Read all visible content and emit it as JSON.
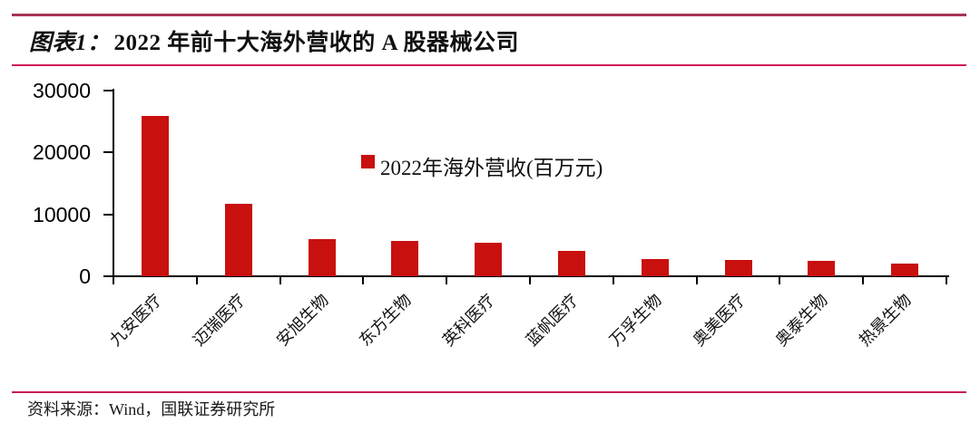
{
  "header": {
    "title_prefix": "图表1：",
    "title_text": "2022 年前十大海外营收的 A 股器械公司"
  },
  "chart_data": {
    "type": "bar",
    "title": "图表1：2022 年前十大海外营收的 A 股器械公司",
    "legend": "2022年海外营收(百万元)",
    "legend_position": "top",
    "categories": [
      "九安医疗",
      "迈瑞医疗",
      "安旭生物",
      "东方生物",
      "英科医疗",
      "蓝帆医疗",
      "万孚生物",
      "奥美医疗",
      "奥泰生物",
      "热景生物"
    ],
    "values": [
      25950,
      11700,
      6000,
      5700,
      5400,
      4150,
      2750,
      2700,
      2550,
      2050
    ],
    "xlabel": "",
    "ylabel": "",
    "ylim": [
      0,
      30000
    ],
    "yticks": [
      0,
      10000,
      20000,
      30000
    ],
    "grid": false,
    "bar_color": "#c8100f"
  },
  "footer": {
    "source_text": "资料来源：Wind，国联证券研究所"
  },
  "colors": {
    "top_rule": "#a83355",
    "title_rule": "#ce1a56",
    "footer_rule": "#c41e50",
    "bar": "#c8100f",
    "axis": "#000000"
  }
}
